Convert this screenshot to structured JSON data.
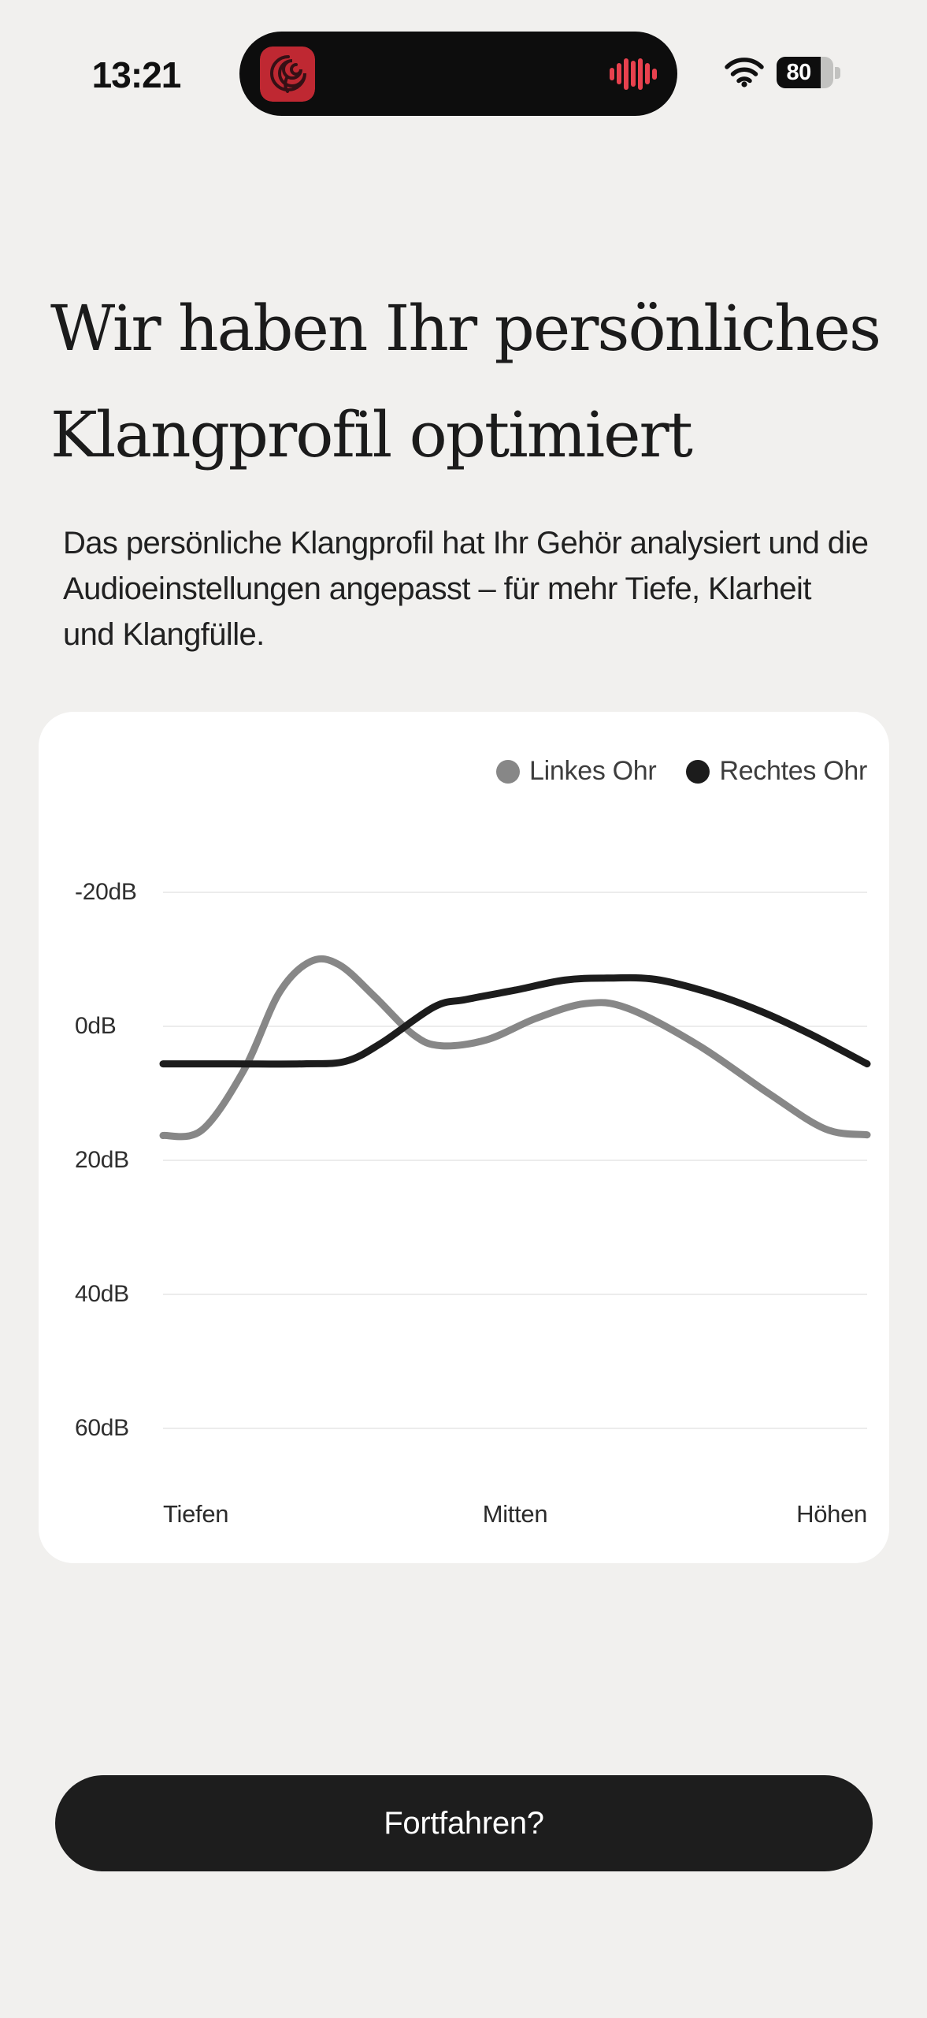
{
  "status_bar": {
    "time": "13:21",
    "battery_percent": "80"
  },
  "dynamic_island": {
    "waveform_bars": [
      16,
      27,
      40,
      33,
      40,
      27,
      14
    ]
  },
  "header": {
    "title_line1": "Wir haben Ihr persönliches",
    "title_line2": "Klangprofil optimiert",
    "body": "Das persönliche Klangprofil hat Ihr Gehör analysiert und die\nAudioeinstellungen angepasst – für mehr Tiefe, Klarheit\nund Klangfülle."
  },
  "chart_data": {
    "type": "line",
    "title": "",
    "legend_position": "top-right",
    "grid": true,
    "x_labels": [
      "Tiefen",
      "Mitten",
      "Höhen"
    ],
    "y_tick_labels": [
      "-20dB",
      "0dB",
      "20dB",
      "40dB",
      "60dB"
    ],
    "y_ticks_db": [
      -20,
      0,
      20,
      40,
      60
    ],
    "ylim_db": [
      -20,
      60
    ],
    "y_axis_inverted": true,
    "series": [
      {
        "name": "Linkes Ohr",
        "color": "#878787",
        "points_x_frac_db": [
          [
            0.0,
            16.3
          ],
          [
            0.055,
            15.5
          ],
          [
            0.115,
            6.5
          ],
          [
            0.165,
            -5.0
          ],
          [
            0.21,
            -9.7
          ],
          [
            0.25,
            -9.2
          ],
          [
            0.3,
            -4.5
          ],
          [
            0.355,
            1.2
          ],
          [
            0.395,
            2.9
          ],
          [
            0.46,
            2.0
          ],
          [
            0.53,
            -1.2
          ],
          [
            0.6,
            -3.4
          ],
          [
            0.66,
            -2.7
          ],
          [
            0.76,
            2.8
          ],
          [
            0.86,
            10.0
          ],
          [
            0.94,
            15.3
          ],
          [
            1.0,
            16.2
          ]
        ]
      },
      {
        "name": "Rechtes Ohr",
        "color": "#1c1c1c",
        "points_x_frac_db": [
          [
            0.0,
            5.6
          ],
          [
            0.1,
            5.6
          ],
          [
            0.2,
            5.6
          ],
          [
            0.26,
            5.2
          ],
          [
            0.31,
            2.5
          ],
          [
            0.385,
            -2.9
          ],
          [
            0.43,
            -4.0
          ],
          [
            0.5,
            -5.4
          ],
          [
            0.57,
            -6.9
          ],
          [
            0.63,
            -7.2
          ],
          [
            0.7,
            -7.0
          ],
          [
            0.78,
            -4.9
          ],
          [
            0.85,
            -2.2
          ],
          [
            0.92,
            1.2
          ],
          [
            1.0,
            5.6
          ]
        ]
      }
    ]
  },
  "footer": {
    "continue_label": "Fortfahren?"
  },
  "colors": {
    "page_bg": "#f1f0ee",
    "card_bg": "#ffffff",
    "island_bg": "#0d0d0d",
    "waveform_red": "#e8414e",
    "album_red": "#bf2832",
    "button_bg": "#1d1d1d",
    "gridline": "#ececec",
    "series_left": "#878787",
    "series_right": "#1c1c1c"
  }
}
